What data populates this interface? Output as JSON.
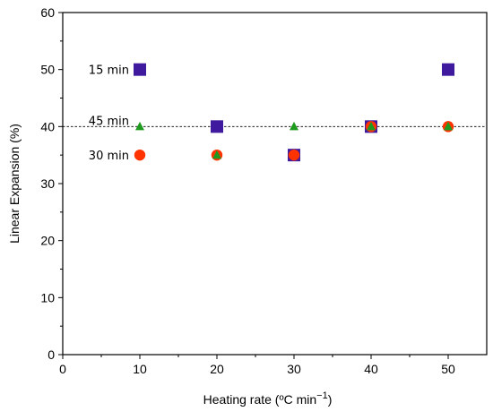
{
  "chart_data": {
    "type": "scatter",
    "title": "",
    "xlabel": "Heating rate (ºC min",
    "xlabel_superscript": "−1",
    "xlabel_close": ")",
    "ylabel": "Linear Expansion (%)",
    "xlim": [
      0,
      55
    ],
    "ylim": [
      0,
      60
    ],
    "xticks": [
      0,
      10,
      20,
      30,
      40,
      50
    ],
    "yticks": [
      0,
      10,
      20,
      30,
      40,
      50,
      60
    ],
    "grid": false,
    "reference_line": {
      "y": 40,
      "style": "dotted"
    },
    "series": [
      {
        "name": "15 min",
        "marker": "square",
        "color": "#3f1a9e",
        "points": [
          [
            10,
            50
          ],
          [
            20,
            40
          ],
          [
            30,
            35
          ],
          [
            40,
            40
          ],
          [
            50,
            50
          ]
        ]
      },
      {
        "name": "30 min",
        "marker": "circle",
        "color": "#ff3300",
        "points": [
          [
            10,
            35
          ],
          [
            20,
            35
          ],
          [
            30,
            35
          ],
          [
            40,
            40
          ],
          [
            50,
            40
          ]
        ]
      },
      {
        "name": "45 min",
        "marker": "triangle",
        "color": "#1f9a1f",
        "points": [
          [
            10,
            40
          ],
          [
            20,
            35
          ],
          [
            30,
            40
          ],
          [
            40,
            40
          ],
          [
            50,
            40
          ]
        ]
      }
    ],
    "annotations": [
      {
        "text": "15 min",
        "x": 10,
        "y": 50
      },
      {
        "text": "45 min",
        "x": 10,
        "y": 40
      },
      {
        "text": "30 min",
        "x": 10,
        "y": 35
      }
    ]
  }
}
